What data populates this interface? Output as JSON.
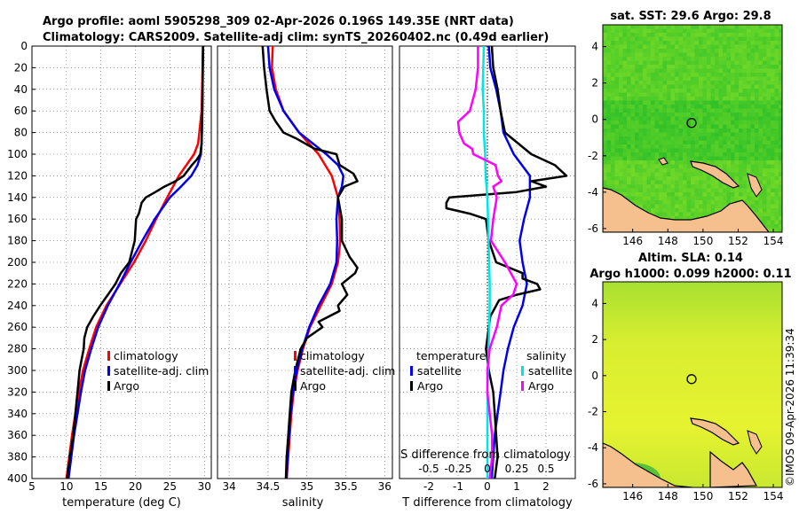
{
  "header": {
    "title_line1": "Argo profile: aoml 5905298_309 02-Apr-2026 0.196S 149.35E (NRT data)",
    "title_line2": "Climatology: CARS2009. Satellite-adj clim: synTS_20260402.nc (0.49d earlier)"
  },
  "side_label": "©IMOS 09-Apr-2026 11:39:34",
  "colors": {
    "climatology": "#ff0000",
    "satellite": "#0000ee",
    "argo": "#000000",
    "sal_diff": "#00e5e5",
    "sal_clim_diff": "#ff00ff",
    "land": "#f5c08e"
  },
  "chart_data": [
    {
      "type": "line",
      "id": "temperature",
      "xlabel": "temperature (deg C)",
      "ylabel": "",
      "xlim": [
        5,
        31
      ],
      "ylim": [
        400,
        0
      ],
      "x_ticks": [
        "5",
        "10",
        "15",
        "20",
        "25",
        "30"
      ],
      "y_ticks": [
        "0",
        "20",
        "40",
        "60",
        "80",
        "100",
        "120",
        "140",
        "160",
        "180",
        "200",
        "220",
        "240",
        "260",
        "280",
        "300",
        "320",
        "340",
        "360",
        "380",
        "400"
      ],
      "legend": [
        "climatology",
        "satellite-adj. clim",
        "Argo"
      ],
      "series": [
        {
          "name": "climatology",
          "depth": [
            0,
            60,
            90,
            100,
            110,
            120,
            140,
            160,
            180,
            200,
            220,
            240,
            260,
            280,
            300,
            320,
            340,
            360,
            380,
            400
          ],
          "values": [
            29.8,
            29.6,
            29.1,
            28.5,
            27.4,
            26.3,
            24.6,
            23.0,
            21.5,
            19.8,
            17.8,
            15.8,
            14.3,
            13.3,
            12.4,
            11.8,
            11.3,
            10.8,
            10.4,
            10.0
          ]
        },
        {
          "name": "satellite-adj. clim",
          "depth": [
            0,
            60,
            90,
            100,
            110,
            120,
            130,
            140,
            150,
            160,
            180,
            200,
            220,
            240,
            260,
            280,
            300,
            320,
            340,
            360,
            380,
            400
          ],
          "values": [
            29.8,
            29.7,
            29.6,
            29.5,
            29.0,
            28.1,
            26.6,
            25.0,
            23.9,
            22.8,
            21.0,
            19.3,
            17.7,
            16.0,
            14.6,
            13.6,
            12.7,
            12.1,
            11.6,
            11.1,
            10.7,
            10.3
          ]
        },
        {
          "name": "Argo",
          "depth": [
            0,
            60,
            90,
            100,
            105,
            110,
            120,
            125,
            130,
            135,
            140,
            145,
            150,
            155,
            160,
            180,
            200,
            210,
            220,
            230,
            240,
            250,
            260,
            270,
            280,
            290,
            300,
            320,
            340,
            360,
            380,
            400
          ],
          "values": [
            29.8,
            29.7,
            29.6,
            29.4,
            28.9,
            28.2,
            27.0,
            25.8,
            24.2,
            22.9,
            21.5,
            20.9,
            20.7,
            20.5,
            20.1,
            19.9,
            19.1,
            17.9,
            17.1,
            16.0,
            14.9,
            13.9,
            13.0,
            12.6,
            12.5,
            12.2,
            11.9,
            11.6,
            11.3,
            11.0,
            10.5,
            10.1
          ]
        }
      ]
    },
    {
      "type": "line",
      "id": "salinity",
      "xlabel": "salinity",
      "xlim": [
        33.85,
        36.1
      ],
      "ylim": [
        400,
        0
      ],
      "x_ticks": [
        "34",
        "34.5",
        "35",
        "35.5",
        "36"
      ],
      "legend": [
        "climatology",
        "satellite-adj. clim",
        "Argo"
      ],
      "series": [
        {
          "name": "climatology",
          "depth": [
            0,
            20,
            40,
            60,
            80,
            100,
            120,
            140,
            160,
            180,
            200,
            220,
            240,
            260,
            280,
            300,
            320,
            340,
            360,
            380,
            400
          ],
          "values": [
            34.56,
            34.55,
            34.6,
            34.7,
            34.9,
            35.15,
            35.32,
            35.4,
            35.42,
            35.43,
            35.4,
            35.32,
            35.18,
            35.04,
            34.95,
            34.88,
            34.83,
            34.8,
            34.78,
            34.76,
            34.74
          ]
        },
        {
          "name": "satellite-adj. clim",
          "depth": [
            0,
            20,
            40,
            60,
            80,
            100,
            110,
            120,
            130,
            140,
            160,
            180,
            200,
            220,
            240,
            260,
            280,
            300,
            320,
            340,
            360,
            380,
            400
          ],
          "values": [
            34.5,
            34.52,
            34.58,
            34.7,
            34.9,
            35.25,
            35.4,
            35.47,
            35.45,
            35.4,
            35.38,
            35.39,
            35.38,
            35.3,
            35.15,
            35.03,
            34.94,
            34.87,
            34.82,
            34.79,
            34.77,
            34.75,
            34.74
          ]
        },
        {
          "name": "Argo",
          "depth": [
            0,
            20,
            40,
            60,
            70,
            80,
            85,
            95,
            100,
            110,
            118,
            125,
            130,
            140,
            160,
            180,
            195,
            205,
            210,
            220,
            230,
            240,
            245,
            255,
            260,
            270,
            280,
            300,
            320,
            340,
            360,
            380,
            400
          ],
          "values": [
            34.43,
            34.45,
            34.48,
            34.52,
            34.6,
            34.7,
            34.85,
            35.1,
            35.38,
            35.42,
            35.6,
            35.65,
            35.48,
            35.4,
            35.45,
            35.45,
            35.55,
            35.65,
            35.62,
            35.45,
            35.52,
            35.4,
            35.42,
            35.15,
            35.2,
            35.0,
            34.92,
            34.85,
            34.8,
            34.78,
            34.76,
            34.74,
            34.73
          ]
        }
      ]
    },
    {
      "type": "line",
      "id": "differences",
      "xlabel": "T difference from climatology",
      "xlabel_top": "S difference from climatology",
      "xlim": [
        -3,
        3
      ],
      "xlim_salinity": [
        -0.75,
        0.75
      ],
      "ylim": [
        400,
        0
      ],
      "x_ticks": [
        "-2",
        "-1",
        "0",
        "1",
        "2"
      ],
      "x_ticks_salinity": [
        "-0.5",
        "-0.25",
        "0",
        "0.25",
        "0.5"
      ],
      "legend_headers": [
        "temperature",
        "salinity"
      ],
      "legend": [
        "satellite",
        "Argo",
        "satellite",
        "Argo"
      ],
      "series": [
        {
          "name": "T satellite",
          "depth": [
            0,
            20,
            40,
            60,
            80,
            100,
            120,
            140,
            160,
            180,
            200,
            220,
            240,
            260,
            280,
            300,
            320,
            340,
            360,
            380,
            400
          ],
          "values": [
            0.05,
            0.1,
            0.3,
            0.45,
            0.55,
            0.9,
            1.45,
            1.45,
            1.25,
            1.1,
            1.2,
            1.35,
            1.2,
            0.9,
            0.7,
            0.55,
            0.45,
            0.35,
            0.25,
            0.2,
            0.15
          ]
        },
        {
          "name": "T Argo",
          "depth": [
            0,
            20,
            40,
            60,
            80,
            100,
            110,
            120,
            125,
            130,
            135,
            140,
            145,
            150,
            155,
            160,
            180,
            200,
            210,
            215,
            220,
            225,
            230,
            235,
            240,
            250,
            260,
            270,
            280,
            300,
            320,
            340,
            360,
            380,
            400
          ],
          "values": [
            0.15,
            0.2,
            0.35,
            0.45,
            0.6,
            1.5,
            2.3,
            2.7,
            1.5,
            2.0,
            1.0,
            -1.3,
            -1.4,
            -1.4,
            -0.6,
            -0.05,
            0.05,
            0.3,
            1.2,
            1.2,
            1.7,
            1.8,
            1.0,
            0.4,
            0.3,
            0.1,
            0.05,
            0,
            -0.05,
            0.05,
            0.2,
            0.25,
            0.3,
            0.35,
            0.25
          ]
        },
        {
          "name": "S satellite",
          "depth": [
            0,
            40,
            60,
            80,
            100,
            120,
            140,
            160,
            180,
            200,
            220,
            240,
            260,
            280,
            300,
            320,
            340,
            360,
            380,
            400
          ],
          "values": [
            -0.03,
            -0.04,
            -0.03,
            -0.03,
            -0.02,
            -0.015,
            0.0,
            0.005,
            0.01,
            0.015,
            0.02,
            0.02,
            0.015,
            0.01,
            0.005,
            0,
            0,
            0,
            0,
            0
          ]
        },
        {
          "name": "S Argo",
          "depth": [
            0,
            20,
            40,
            60,
            70,
            80,
            90,
            95,
            100,
            110,
            120,
            125,
            130,
            140,
            160,
            180,
            200,
            210,
            220,
            230,
            240,
            250,
            260,
            270,
            280,
            300,
            320,
            340,
            360,
            380,
            400
          ],
          "values": [
            -0.08,
            -0.08,
            -0.1,
            -0.15,
            -0.25,
            -0.24,
            -0.2,
            -0.13,
            -0.12,
            0.07,
            0.09,
            0.12,
            0.05,
            0.08,
            0.05,
            0.03,
            0.15,
            0.2,
            0.25,
            0.22,
            0.12,
            0.1,
            0.08,
            0.05,
            0.02,
            0,
            0,
            0.02,
            0.04,
            0.04,
            0.02
          ]
        }
      ]
    },
    {
      "type": "heatmap",
      "id": "sst_map",
      "title": "sat. SST: 29.6 Argo: 29.8",
      "x_ticks": [
        "146",
        "148",
        "150",
        "152",
        "154"
      ],
      "y_ticks": [
        "4",
        "2",
        "0",
        "-2",
        "-4",
        "-6"
      ],
      "xlim": [
        144.3,
        154.5
      ],
      "ylim": [
        -6.2,
        5.2
      ],
      "marker": [
        149.35,
        -0.196
      ]
    },
    {
      "type": "heatmap",
      "id": "sla_map",
      "title_line1": "Altim. SLA: 0.14",
      "title_line2": "Argo h1000: 0.099 h2000: 0.11",
      "x_ticks": [
        "146",
        "148",
        "150",
        "152",
        "154"
      ],
      "y_ticks": [
        "4",
        "2",
        "0",
        "-2",
        "-4",
        "-6"
      ],
      "xlim": [
        144.3,
        154.5
      ],
      "ylim": [
        -6.2,
        5.2
      ],
      "marker": [
        149.35,
        -0.196
      ]
    }
  ]
}
